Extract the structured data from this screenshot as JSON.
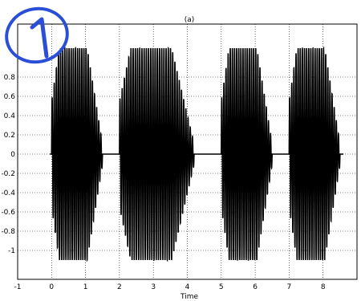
{
  "chart_data": {
    "type": "line",
    "title": "(a)",
    "xlabel": "Time",
    "ylabel": "",
    "xlim": [
      -1,
      9
    ],
    "ylim": [
      -1.3,
      1.35
    ],
    "xticks": [
      -1,
      0,
      1,
      2,
      3,
      4,
      5,
      6,
      7,
      8
    ],
    "yticks": [
      -1,
      -0.8,
      -0.6,
      -0.4,
      -0.2,
      0,
      0.2,
      0.4,
      0.6,
      0.8
    ],
    "grid": true,
    "line_color": "#000000",
    "annotation": {
      "text": "1",
      "color": "#2a4fd6",
      "style": "handwritten circled"
    },
    "series": [
      {
        "name": "",
        "bursts": [
          {
            "start": 0.0,
            "end": 1.5,
            "amplitude": 1.1,
            "cycles": 24
          },
          {
            "start": 2.0,
            "end": 4.2,
            "amplitude": 1.1,
            "cycles": 34
          },
          {
            "start": 5.0,
            "end": 6.5,
            "amplitude": 1.1,
            "cycles": 24
          },
          {
            "start": 7.0,
            "end": 8.5,
            "amplitude": 1.1,
            "cycles": 24
          }
        ]
      }
    ]
  }
}
